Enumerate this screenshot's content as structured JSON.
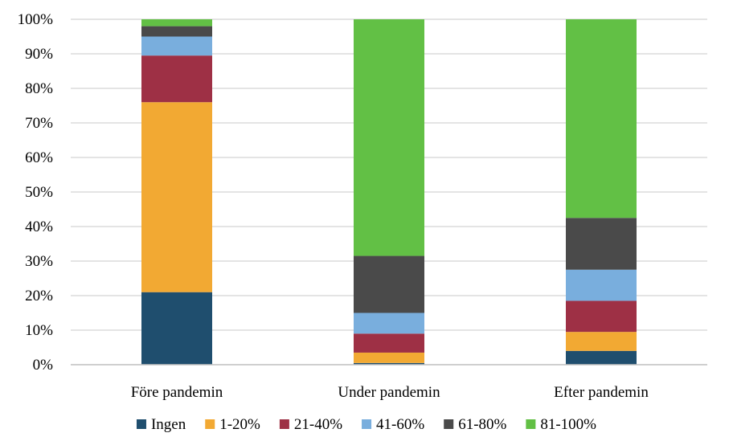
{
  "chart_data": {
    "type": "bar",
    "stacked": true,
    "percent": true,
    "categories": [
      "Före pandemin",
      "Under pandemin",
      "Efter pandemin"
    ],
    "series": [
      {
        "name": "Ingen",
        "color": "#1f4e6e",
        "values": [
          21,
          0.5,
          4
        ]
      },
      {
        "name": "1-20%",
        "color": "#f2a933",
        "values": [
          55,
          3,
          5.5
        ]
      },
      {
        "name": "21-40%",
        "color": "#9e3045",
        "values": [
          13.5,
          5.5,
          9
        ]
      },
      {
        "name": "41-60%",
        "color": "#79aedd",
        "values": [
          5.5,
          6,
          9
        ]
      },
      {
        "name": "61-80%",
        "color": "#4a4a4a",
        "values": [
          3,
          16.5,
          15
        ]
      },
      {
        "name": "81-100%",
        "color": "#62c045",
        "values": [
          2,
          68.5,
          57.5
        ]
      }
    ],
    "yticks": [
      "0%",
      "10%",
      "20%",
      "30%",
      "40%",
      "50%",
      "60%",
      "70%",
      "80%",
      "90%",
      "100%"
    ],
    "ylim": [
      0,
      100
    ],
    "grid": true,
    "legend": "bottom",
    "gridColor": "#c8c8c8",
    "axisColor": "#bfbfbf"
  }
}
